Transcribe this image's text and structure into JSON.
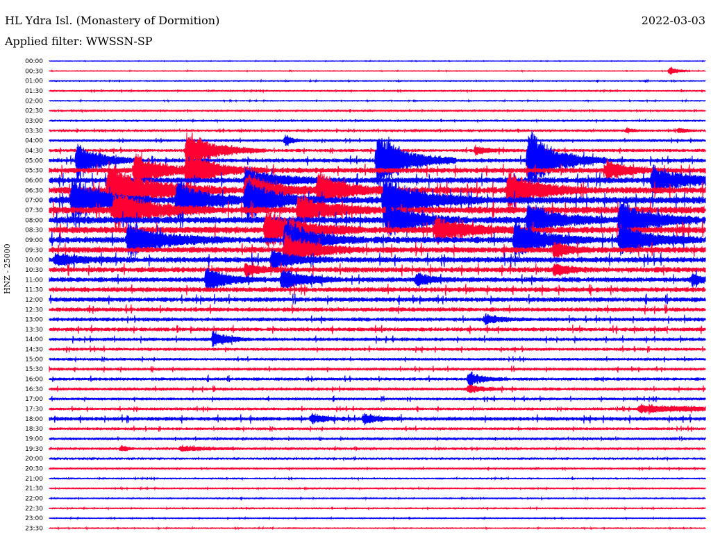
{
  "header": {
    "station": "HL Ydra Isl. (Monastery of Dormition)",
    "date": "2022-03-03",
    "filter": "Applied filter: WWSSN-SP"
  },
  "chart_data": {
    "type": "line",
    "ylabel": "HNZ - 25000",
    "colors": [
      "#0000ff",
      "#ff0033"
    ],
    "rows": [
      "00:00",
      "00:30",
      "01:00",
      "01:30",
      "02:00",
      "02:30",
      "03:00",
      "03:30",
      "04:00",
      "04:30",
      "05:00",
      "05:30",
      "06:00",
      "06:30",
      "07:00",
      "07:30",
      "08:00",
      "08:30",
      "09:00",
      "09:30",
      "10:00",
      "10:30",
      "11:00",
      "11:30",
      "12:00",
      "12:30",
      "13:00",
      "13:30",
      "14:00",
      "14:30",
      "15:00",
      "15:30",
      "16:00",
      "16:30",
      "17:00",
      "17:30",
      "18:00",
      "18:30",
      "19:00",
      "19:30",
      "20:00",
      "20:30",
      "21:00",
      "21:30",
      "22:00",
      "22:30",
      "23:00",
      "23:30"
    ],
    "noise": [
      0.2,
      0.3,
      0.4,
      0.5,
      0.4,
      0.6,
      0.6,
      0.8,
      1.0,
      1.4,
      2.0,
      2.6,
      3.0,
      3.4,
      3.6,
      3.6,
      3.6,
      3.4,
      3.2,
      3.0,
      2.8,
      2.6,
      2.4,
      2.4,
      2.2,
      2.0,
      1.8,
      1.8,
      1.6,
      1.4,
      1.2,
      1.3,
      1.4,
      1.4,
      1.2,
      1.2,
      1.8,
      1.2,
      0.9,
      0.8,
      0.7,
      0.6,
      0.5,
      0.5,
      0.5,
      0.5,
      0.4,
      0.4
    ],
    "events": [
      {
        "row": 1,
        "t": 0.946,
        "amp": 7,
        "dur": 0.01
      },
      {
        "row": 7,
        "t": 0.88,
        "amp": 4,
        "dur": 0.01
      },
      {
        "row": 7,
        "t": 0.96,
        "amp": 5,
        "dur": 0.01
      },
      {
        "row": 8,
        "t": 0.36,
        "amp": 10,
        "dur": 0.01
      },
      {
        "row": 9,
        "t": 0.21,
        "amp": 30,
        "dur": 0.04
      },
      {
        "row": 9,
        "t": 0.65,
        "amp": 6,
        "dur": 0.02
      },
      {
        "row": 10,
        "t": 0.043,
        "amp": 30,
        "dur": 0.03
      },
      {
        "row": 10,
        "t": 0.5,
        "amp": 45,
        "dur": 0.04
      },
      {
        "row": 10,
        "t": 0.73,
        "amp": 45,
        "dur": 0.04
      },
      {
        "row": 11,
        "t": 0.21,
        "amp": 25,
        "dur": 0.04
      },
      {
        "row": 11,
        "t": 0.13,
        "amp": 25,
        "dur": 0.04
      },
      {
        "row": 11,
        "t": 0.85,
        "amp": 15,
        "dur": 0.03
      },
      {
        "row": 12,
        "t": 0.3,
        "amp": 20,
        "dur": 0.04
      },
      {
        "row": 12,
        "t": 0.92,
        "amp": 20,
        "dur": 0.05
      },
      {
        "row": 13,
        "t": 0.09,
        "amp": 40,
        "dur": 0.06
      },
      {
        "row": 13,
        "t": 0.3,
        "amp": 25,
        "dur": 0.04
      },
      {
        "row": 13,
        "t": 0.41,
        "amp": 25,
        "dur": 0.04
      },
      {
        "row": 13,
        "t": 0.7,
        "amp": 30,
        "dur": 0.04
      },
      {
        "row": 14,
        "t": 0.035,
        "amp": 35,
        "dur": 0.04
      },
      {
        "row": 14,
        "t": 0.195,
        "amp": 30,
        "dur": 0.04
      },
      {
        "row": 14,
        "t": 0.3,
        "amp": 30,
        "dur": 0.04
      },
      {
        "row": 14,
        "t": 0.51,
        "amp": 35,
        "dur": 0.05
      },
      {
        "row": 15,
        "t": 0.1,
        "amp": 30,
        "dur": 0.05
      },
      {
        "row": 15,
        "t": 0.38,
        "amp": 25,
        "dur": 0.04
      },
      {
        "row": 16,
        "t": 0.515,
        "amp": 25,
        "dur": 0.04
      },
      {
        "row": 16,
        "t": 0.87,
        "amp": 30,
        "dur": 0.04
      },
      {
        "row": 16,
        "t": 0.73,
        "amp": 25,
        "dur": 0.04
      },
      {
        "row": 17,
        "t": 0.33,
        "amp": 30,
        "dur": 0.05
      },
      {
        "row": 17,
        "t": 0.59,
        "amp": 20,
        "dur": 0.04
      },
      {
        "row": 18,
        "t": 0.12,
        "amp": 25,
        "dur": 0.05
      },
      {
        "row": 18,
        "t": 0.36,
        "amp": 30,
        "dur": 0.04
      },
      {
        "row": 18,
        "t": 0.71,
        "amp": 30,
        "dur": 0.04
      },
      {
        "row": 18,
        "t": 0.87,
        "amp": 25,
        "dur": 0.04
      },
      {
        "row": 19,
        "t": 0.36,
        "amp": 25,
        "dur": 0.04
      },
      {
        "row": 19,
        "t": 0.77,
        "amp": 12,
        "dur": 0.02
      },
      {
        "row": 20,
        "t": 0.01,
        "amp": 8,
        "dur": 0.04
      },
      {
        "row": 20,
        "t": 0.34,
        "amp": 15,
        "dur": 0.03
      },
      {
        "row": 21,
        "t": 0.3,
        "amp": 10,
        "dur": 0.02
      },
      {
        "row": 21,
        "t": 0.77,
        "amp": 10,
        "dur": 0.02
      },
      {
        "row": 22,
        "t": 0.24,
        "amp": 18,
        "dur": 0.03
      },
      {
        "row": 22,
        "t": 0.355,
        "amp": 18,
        "dur": 0.03
      },
      {
        "row": 22,
        "t": 0.56,
        "amp": 10,
        "dur": 0.02
      },
      {
        "row": 22,
        "t": 0.98,
        "amp": 8,
        "dur": 0.02
      },
      {
        "row": 26,
        "t": 0.665,
        "amp": 8,
        "dur": 0.02
      },
      {
        "row": 28,
        "t": 0.25,
        "amp": 12,
        "dur": 0.02
      },
      {
        "row": 32,
        "t": 0.64,
        "amp": 10,
        "dur": 0.02
      },
      {
        "row": 33,
        "t": 0.64,
        "amp": 6,
        "dur": 0.02
      },
      {
        "row": 35,
        "t": 0.9,
        "amp": 5,
        "dur": 0.12
      },
      {
        "row": 36,
        "t": 0.4,
        "amp": 7,
        "dur": 0.02
      },
      {
        "row": 36,
        "t": 0.48,
        "amp": 8,
        "dur": 0.02
      },
      {
        "row": 39,
        "t": 0.2,
        "amp": 4,
        "dur": 0.05
      },
      {
        "row": 39,
        "t": 0.11,
        "amp": 5,
        "dur": 0.01
      }
    ]
  }
}
